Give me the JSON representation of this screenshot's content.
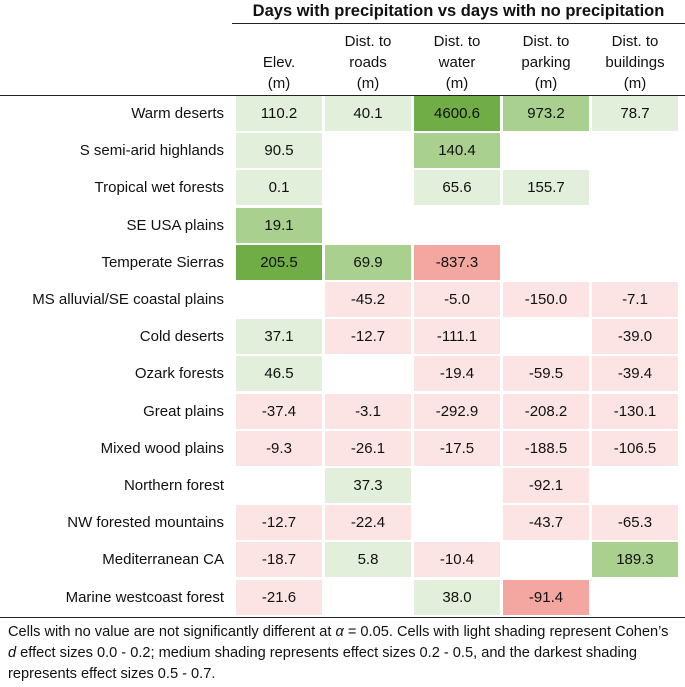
{
  "table": {
    "group_title": "Days with precipitation vs days with no precipitation",
    "columns": [
      {
        "lines": [
          "Elev.",
          "(m)"
        ]
      },
      {
        "lines": [
          "Dist. to",
          "roads",
          "(m)"
        ]
      },
      {
        "lines": [
          "Dist. to",
          "water",
          "(m)"
        ]
      },
      {
        "lines": [
          "Dist. to",
          "parking",
          "(m)"
        ]
      },
      {
        "lines": [
          "Dist. to",
          "buildings",
          "(m)"
        ]
      }
    ],
    "shades": {
      "pos1": "#e2efda",
      "pos2": "#a9d08e",
      "pos3": "#70ad47",
      "neg1": "#fce4e4",
      "neg2": "#f4a6a0"
    },
    "rows": [
      {
        "label": "Warm deserts",
        "cells": [
          [
            "110.2",
            "pos1"
          ],
          [
            "40.1",
            "pos1"
          ],
          [
            "4600.6",
            "pos3"
          ],
          [
            "973.2",
            "pos2"
          ],
          [
            "78.7",
            "pos1"
          ]
        ]
      },
      {
        "label": "S semi-arid highlands",
        "cells": [
          [
            "90.5",
            "pos1"
          ],
          [
            "",
            ""
          ],
          [
            "140.4",
            "pos2"
          ],
          [
            "",
            ""
          ],
          [
            "",
            ""
          ]
        ]
      },
      {
        "label": "Tropical wet forests",
        "cells": [
          [
            "0.1",
            "pos1"
          ],
          [
            "",
            ""
          ],
          [
            "65.6",
            "pos1"
          ],
          [
            "155.7",
            "pos1"
          ],
          [
            "",
            ""
          ]
        ]
      },
      {
        "label": "SE USA plains",
        "cells": [
          [
            "19.1",
            "pos2"
          ],
          [
            "",
            ""
          ],
          [
            "",
            ""
          ],
          [
            "",
            ""
          ],
          [
            "",
            ""
          ]
        ]
      },
      {
        "label": "Temperate Sierras",
        "cells": [
          [
            "205.5",
            "pos3"
          ],
          [
            "69.9",
            "pos2"
          ],
          [
            "-837.3",
            "neg2"
          ],
          [
            "",
            ""
          ],
          [
            "",
            ""
          ]
        ]
      },
      {
        "label": "MS alluvial/SE coastal plains",
        "cells": [
          [
            "",
            ""
          ],
          [
            "-45.2",
            "neg1"
          ],
          [
            "-5.0",
            "neg1"
          ],
          [
            "-150.0",
            "neg1"
          ],
          [
            "-7.1",
            "neg1"
          ]
        ]
      },
      {
        "label": "Cold deserts",
        "cells": [
          [
            "37.1",
            "pos1"
          ],
          [
            "-12.7",
            "neg1"
          ],
          [
            "-111.1",
            "neg1"
          ],
          [
            "",
            ""
          ],
          [
            "-39.0",
            "neg1"
          ]
        ]
      },
      {
        "label": "Ozark forests",
        "cells": [
          [
            "46.5",
            "pos1"
          ],
          [
            "",
            ""
          ],
          [
            "-19.4",
            "neg1"
          ],
          [
            "-59.5",
            "neg1"
          ],
          [
            "-39.4",
            "neg1"
          ]
        ]
      },
      {
        "label": "Great plains",
        "cells": [
          [
            "-37.4",
            "neg1"
          ],
          [
            "-3.1",
            "neg1"
          ],
          [
            "-292.9",
            "neg1"
          ],
          [
            "-208.2",
            "neg1"
          ],
          [
            "-130.1",
            "neg1"
          ]
        ]
      },
      {
        "label": "Mixed wood plains",
        "cells": [
          [
            "-9.3",
            "neg1"
          ],
          [
            "-26.1",
            "neg1"
          ],
          [
            "-17.5",
            "neg1"
          ],
          [
            "-188.5",
            "neg1"
          ],
          [
            "-106.5",
            "neg1"
          ]
        ]
      },
      {
        "label": "Northern forest",
        "cells": [
          [
            "",
            ""
          ],
          [
            "37.3",
            "pos1"
          ],
          [
            "",
            ""
          ],
          [
            "-92.1",
            "neg1"
          ],
          [
            "",
            ""
          ]
        ]
      },
      {
        "label": "NW forested mountains",
        "cells": [
          [
            "-12.7",
            "neg1"
          ],
          [
            "-22.4",
            "neg1"
          ],
          [
            "",
            ""
          ],
          [
            "-43.7",
            "neg1"
          ],
          [
            "-65.3",
            "neg1"
          ]
        ]
      },
      {
        "label": "Mediterranean CA",
        "cells": [
          [
            "-18.7",
            "neg1"
          ],
          [
            "5.8",
            "pos1"
          ],
          [
            "-10.4",
            "neg1"
          ],
          [
            "",
            ""
          ],
          [
            "189.3",
            "pos2"
          ]
        ]
      },
      {
        "label": "Marine westcoast forest",
        "cells": [
          [
            "-21.6",
            "neg1"
          ],
          [
            "",
            ""
          ],
          [
            "38.0",
            "pos1"
          ],
          [
            "-91.4",
            "neg2"
          ],
          [
            "",
            ""
          ]
        ]
      }
    ]
  },
  "footnote": {
    "part1": "Cells with no value are not significantly different at ",
    "alpha": "α",
    "part2": " = 0.05. Cells with light shading represent Cohen’s ",
    "d": "d",
    "part3": " effect sizes 0.0 - 0.2; medium shading represents effect sizes 0.2 - 0.5, and the darkest shading represents effect sizes 0.5 - 0.7."
  }
}
